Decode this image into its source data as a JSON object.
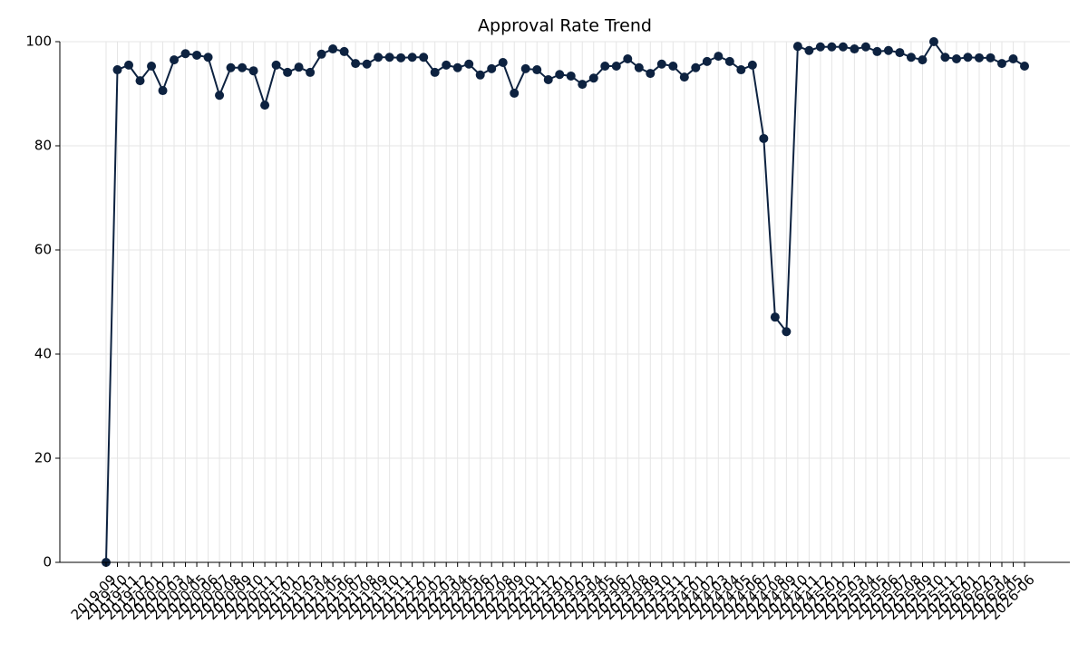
{
  "chart_data": {
    "type": "line",
    "title": "Approval Rate Trend",
    "categories": [
      "2019-09",
      "2019-10",
      "2019-11",
      "2019-12",
      "2020-01",
      "2020-02",
      "2020-03",
      "2020-04",
      "2020-05",
      "2020-06",
      "2020-07",
      "2020-08",
      "2020-09",
      "2020-10",
      "2020-11",
      "2020-12",
      "2021-01",
      "2021-02",
      "2021-03",
      "2021-04",
      "2021-05",
      "2021-06",
      "2021-07",
      "2021-08",
      "2021-09",
      "2021-10",
      "2021-11",
      "2021-12",
      "2022-01",
      "2022-02",
      "2022-03",
      "2022-04",
      "2022-05",
      "2022-06",
      "2022-07",
      "2022-08",
      "2022-09",
      "2022-10",
      "2022-11",
      "2022-12",
      "2023-01",
      "2023-02",
      "2023-03",
      "2023-04",
      "2023-05",
      "2023-06",
      "2023-07",
      "2023-08",
      "2023-09",
      "2023-10",
      "2023-11",
      "2023-12",
      "2024-01",
      "2024-02",
      "2024-03",
      "2024-04",
      "2024-05",
      "2024-06",
      "2024-07",
      "2024-08",
      "2024-09",
      "2024-10",
      "2024-11",
      "2024-12",
      "2025-01",
      "2025-02",
      "2025-03",
      "2025-04",
      "2025-05",
      "2025-06",
      "2025-07",
      "2025-08",
      "2025-09",
      "2025-10",
      "2025-11",
      "2025-12",
      "2026-01",
      "2026-02",
      "2026-03",
      "2026-04",
      "2026-05",
      "2026-06"
    ],
    "series": [
      {
        "color": "#0d2240",
        "values": [
          0,
          94.6,
          95.5,
          92.5,
          95.3,
          90.6,
          96.5,
          97.7,
          97.4,
          97.0,
          89.7,
          95.0,
          95.0,
          94.4,
          87.8,
          95.5,
          94.1,
          95.1,
          94.1,
          97.6,
          98.6,
          98.1,
          95.8,
          95.7,
          97.0,
          97.0,
          96.9,
          97.0,
          97.0,
          94.1,
          95.5,
          95.0,
          95.7,
          93.6,
          94.8,
          96.0,
          90.1,
          94.8,
          94.6,
          92.7,
          93.7,
          93.4,
          91.8,
          93.0,
          95.3,
          95.3,
          96.7,
          95.0,
          93.9,
          95.7,
          95.3,
          93.2,
          95.0,
          96.2,
          97.2,
          96.2,
          94.6,
          95.5,
          81.4,
          47.1,
          44.3,
          99.1,
          98.3,
          99.0,
          99.0,
          99.0,
          98.6,
          99.0,
          98.1,
          98.3,
          97.9,
          97.0,
          96.5,
          100,
          97.0,
          96.7,
          97.0,
          96.9,
          96.9,
          95.8,
          96.7,
          95.3
        ]
      }
    ],
    "ylim": [
      0,
      100
    ],
    "yticks": [
      0,
      20,
      40,
      60,
      80,
      100
    ],
    "grid": true
  }
}
